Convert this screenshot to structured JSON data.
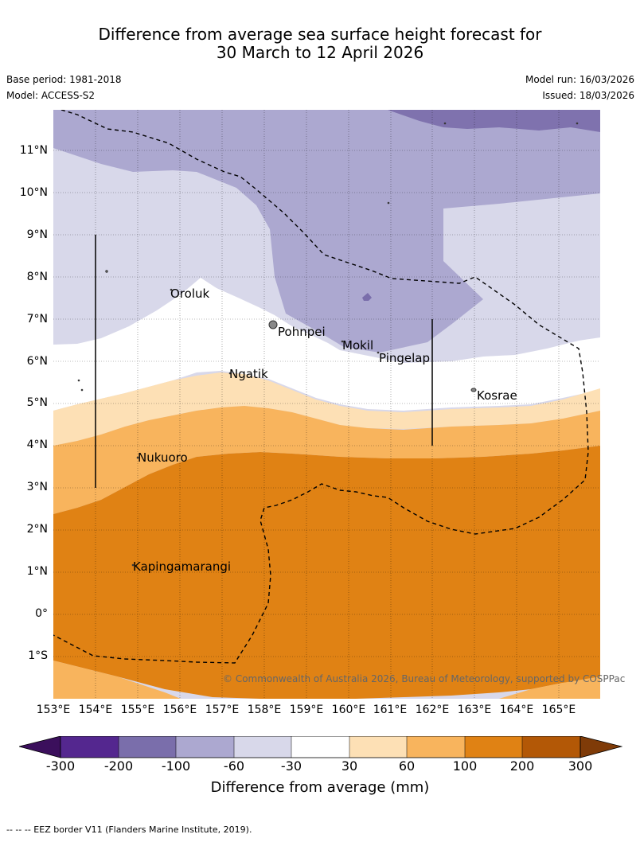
{
  "title": {
    "line1": "Difference from average sea surface height forecast for",
    "line2": "30 March to 12 April 2026"
  },
  "meta": {
    "base_period": "Base period: 1981-2018",
    "model": "Model: ACCESS-S2",
    "model_run": "Model run: 16/03/2026",
    "issued": "Issued: 18/03/2026"
  },
  "axes": {
    "lat_labels": [
      "11°N",
      "10°N",
      "9°N",
      "8°N",
      "7°N",
      "6°N",
      "5°N",
      "4°N",
      "3°N",
      "2°N",
      "1°N",
      "0°",
      "1°S"
    ],
    "lon_labels": [
      "153°E",
      "154°E",
      "155°E",
      "156°E",
      "157°E",
      "158°E",
      "159°E",
      "160°E",
      "161°E",
      "162°E",
      "163°E",
      "164°E",
      "165°E"
    ]
  },
  "places": [
    {
      "name": "Oroluk",
      "id": "oroluk"
    },
    {
      "name": "Pohnpei",
      "id": "pohnpei"
    },
    {
      "name": "Mokil",
      "id": "mokil"
    },
    {
      "name": "Pingelap",
      "id": "pingelap"
    },
    {
      "name": "Ngatik",
      "id": "ngatik"
    },
    {
      "name": "Kosrae",
      "id": "kosrae"
    },
    {
      "name": "Nukuoro",
      "id": "nukuoro"
    },
    {
      "name": "Kapingamarangi",
      "id": "kapingamarangi"
    }
  ],
  "copyright": "© Commonwealth of Australia 2026, Bureau of Meteorology, supported by COSPPac",
  "colorbar": {
    "labels": [
      "-300",
      "-200",
      "-100",
      "-60",
      "-30",
      "30",
      "60",
      "100",
      "200",
      "300"
    ],
    "colors": [
      "#3b0f5c",
      "#54278f",
      "#7a6eab",
      "#aca8d0",
      "#d8d8ea",
      "#ffffff",
      "#fde0b5",
      "#f8b45d",
      "#e08214",
      "#b35806",
      "#7f3b08"
    ],
    "title": "Difference from average (mm)"
  },
  "footnote": "-- -- -- EEZ border V11 (Flanders Marine Institute, 2019)."
}
